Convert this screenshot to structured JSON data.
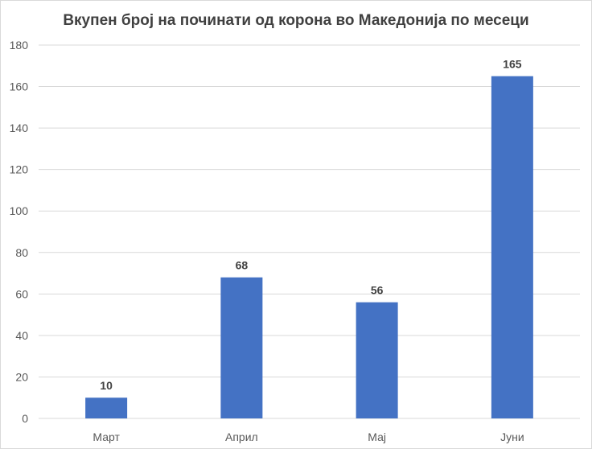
{
  "chart_data": {
    "type": "bar",
    "title": "Вкупен број на починати од корона во Македонија по месеци",
    "categories": [
      "Март",
      "Април",
      "Мај",
      "Јуни"
    ],
    "values": [
      10,
      68,
      56,
      165
    ],
    "xlabel": "",
    "ylabel": "",
    "ylim": [
      0,
      180
    ],
    "yticks": [
      0,
      20,
      40,
      60,
      80,
      100,
      120,
      140,
      160,
      180
    ],
    "grid": true,
    "legend": "none",
    "bar_color": "#4472C4",
    "grid_color": "#d9d9d9"
  }
}
